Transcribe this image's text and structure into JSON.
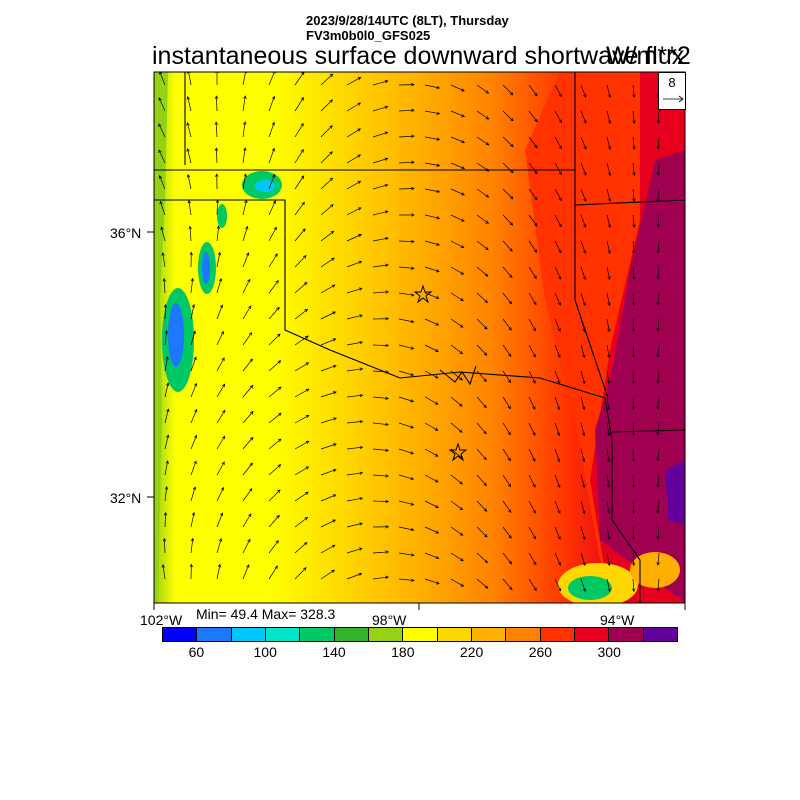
{
  "header": {
    "datetime_line": "2023/9/28/14UTC (8LT), Thursday",
    "model_line": "FV3m0b0l0_GFS025"
  },
  "title": "instantaneous surface downward shortwave flux",
  "units": "W/m**2",
  "stats": "Min= 49.4 Max= 328.3",
  "vector_reference": {
    "value": "8"
  },
  "lat_labels": [
    "36°N",
    "32°N"
  ],
  "lon_labels": [
    "102°W",
    "98°W",
    "94°W"
  ],
  "colorbar": {
    "colors": [
      "#0000ff",
      "#1c78ff",
      "#00c8ff",
      "#00e4c8",
      "#00c864",
      "#32b428",
      "#96d214",
      "#ffff00",
      "#ffd700",
      "#ffaf00",
      "#ff8200",
      "#ff3200",
      "#e6001e",
      "#a00050",
      "#64009b"
    ],
    "labels": [
      "60",
      "100",
      "140",
      "180",
      "220",
      "260",
      "300"
    ]
  },
  "map": {
    "markers": [
      "star",
      "star"
    ]
  }
}
